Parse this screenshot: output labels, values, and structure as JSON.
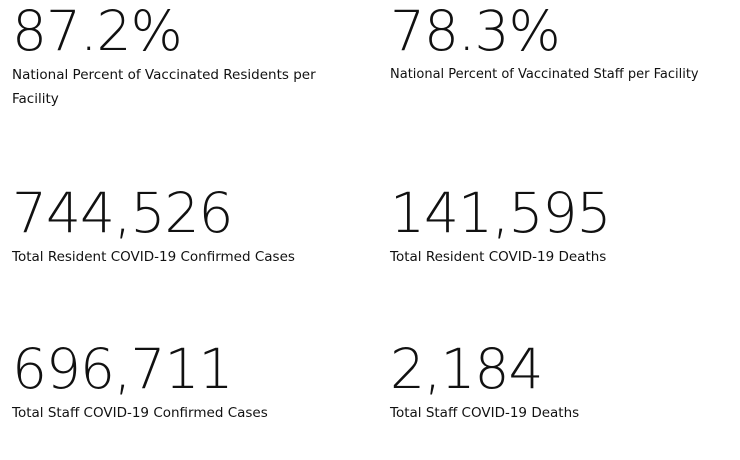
{
  "stats": [
    {
      "value": "87.2%",
      "label": "National Percent of Vaccinated Residents per Facility"
    },
    {
      "value": "78.3%",
      "label": "National Percent of Vaccinated Staff per Facility"
    },
    {
      "value": "744,526",
      "label": "Total Resident COVID-19 Confirmed Cases"
    },
    {
      "value": "141,595",
      "label": "Total Resident COVID-19 Deaths"
    },
    {
      "value": "696,711",
      "label": "Total Staff COVID-19 Confirmed Cases"
    },
    {
      "value": "2,184",
      "label": "Total Staff COVID-19 Deaths"
    }
  ]
}
